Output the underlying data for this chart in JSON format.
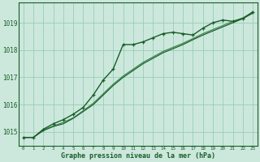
{
  "background_color": "#cce8dc",
  "grid_color": "#99ccb8",
  "line_color_dark": "#1a5c2a",
  "line_color_mid": "#2a7a3a",
  "xlabel": "Graphe pression niveau de la mer (hPa)",
  "ylabel_ticks": [
    1015,
    1016,
    1017,
    1018,
    1019
  ],
  "xlim": [
    -0.5,
    23.5
  ],
  "ylim": [
    1014.5,
    1019.75
  ],
  "x_ticks": [
    0,
    1,
    2,
    3,
    4,
    5,
    6,
    7,
    8,
    9,
    10,
    11,
    12,
    13,
    14,
    15,
    16,
    17,
    18,
    19,
    20,
    21,
    22,
    23
  ],
  "series_marker": [
    1014.8,
    1014.8,
    1015.1,
    1015.3,
    1015.45,
    1015.65,
    1015.9,
    1016.35,
    1016.9,
    1017.3,
    1018.2,
    1018.2,
    1018.3,
    1018.45,
    1018.6,
    1018.65,
    1018.6,
    1018.55,
    1018.8,
    1019.0,
    1019.1,
    1019.05,
    1019.15,
    1019.4
  ],
  "series_linear1": [
    1014.8,
    1014.8,
    1015.05,
    1015.2,
    1015.3,
    1015.5,
    1015.75,
    1016.0,
    1016.35,
    1016.7,
    1017.0,
    1017.25,
    1017.5,
    1017.7,
    1017.9,
    1018.05,
    1018.2,
    1018.38,
    1018.55,
    1018.7,
    1018.85,
    1019.0,
    1019.15,
    1019.35
  ],
  "series_linear2": [
    1014.8,
    1014.8,
    1015.08,
    1015.22,
    1015.35,
    1015.52,
    1015.78,
    1016.05,
    1016.4,
    1016.75,
    1017.05,
    1017.3,
    1017.55,
    1017.75,
    1017.95,
    1018.1,
    1018.25,
    1018.42,
    1018.6,
    1018.75,
    1018.9,
    1019.05,
    1019.18,
    1019.38
  ]
}
